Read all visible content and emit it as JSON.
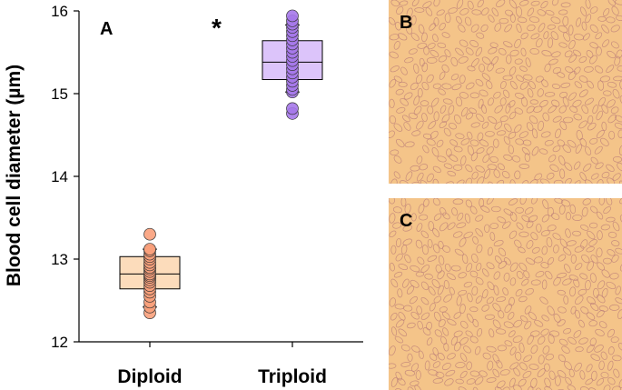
{
  "chart_data": {
    "type": "box",
    "panel_label": "A",
    "ylabel": "Blood cell diameter (µm)",
    "ylim": [
      12,
      16
    ],
    "yticks": [
      "12",
      "13",
      "14",
      "15",
      "16"
    ],
    "categories": [
      "Diploid",
      "Triploid"
    ],
    "significance_marker": "*",
    "grid": false,
    "series": [
      {
        "category": "Diploid",
        "color": "#f9a07b",
        "box_fill": "#fcdcbb",
        "q1": 12.64,
        "median": 12.82,
        "q3": 13.03,
        "whisker_low": 12.42,
        "whisker_high": 13.12,
        "points": [
          12.35,
          12.42,
          12.48,
          12.55,
          12.6,
          12.64,
          12.68,
          12.72,
          12.75,
          12.78,
          12.8,
          12.82,
          12.85,
          12.88,
          12.9,
          12.93,
          12.96,
          13.0,
          13.03,
          13.06,
          13.1,
          13.12,
          13.3
        ]
      },
      {
        "category": "Triploid",
        "color": "#a679ea",
        "box_fill": "#dcc4fa",
        "q1": 15.17,
        "median": 15.38,
        "q3": 15.64,
        "whisker_low": 15.02,
        "whisker_high": 15.83,
        "points": [
          14.76,
          14.82,
          15.02,
          15.05,
          15.1,
          15.15,
          15.2,
          15.25,
          15.3,
          15.35,
          15.4,
          15.45,
          15.5,
          15.55,
          15.6,
          15.65,
          15.7,
          15.75,
          15.8,
          15.84,
          15.88,
          15.94
        ]
      }
    ]
  },
  "photos": {
    "b": {
      "label": "B",
      "bg_color": "#f4c489",
      "cell_color": "#b87a78"
    },
    "c": {
      "label": "C",
      "bg_color": "#f4c489",
      "cell_color": "#b87a78"
    }
  }
}
